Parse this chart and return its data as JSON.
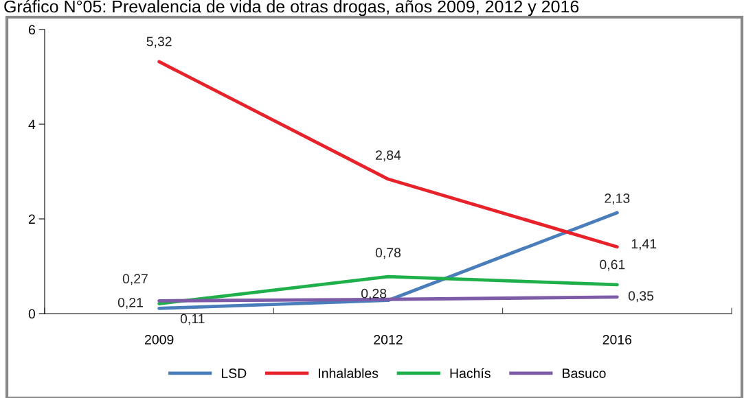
{
  "chart_data": {
    "type": "line",
    "title": "Gráfico N°05: Prevalencia de vida de otras drogas, años 2009, 2012 y 2016",
    "categories": [
      "2009",
      "2012",
      "2016"
    ],
    "series": [
      {
        "name": "LSD",
        "color": "#4a7ebb",
        "values": [
          0.11,
          0.28,
          2.13
        ],
        "value_labels": [
          "0,11",
          "0,28",
          "2,13"
        ]
      },
      {
        "name": "Inhalables",
        "color": "#e8222a",
        "values": [
          5.32,
          2.84,
          1.41
        ],
        "value_labels": [
          "5,32",
          "2,84",
          "1,41"
        ]
      },
      {
        "name": "Hachís",
        "color": "#1fb04c",
        "values": [
          0.21,
          0.78,
          0.61
        ],
        "value_labels": [
          "0,21",
          "0,78",
          "0,61"
        ]
      },
      {
        "name": "Basuco",
        "color": "#7d5ba6",
        "values": [
          0.27,
          0.3,
          0.35
        ],
        "value_labels": [
          "0,27",
          null,
          "0,35"
        ]
      }
    ],
    "ylim": [
      0,
      6
    ],
    "yticks": [
      0,
      2,
      4,
      6
    ],
    "grid": false,
    "legend": "bottom",
    "marker": "none",
    "line_style": "solid"
  }
}
